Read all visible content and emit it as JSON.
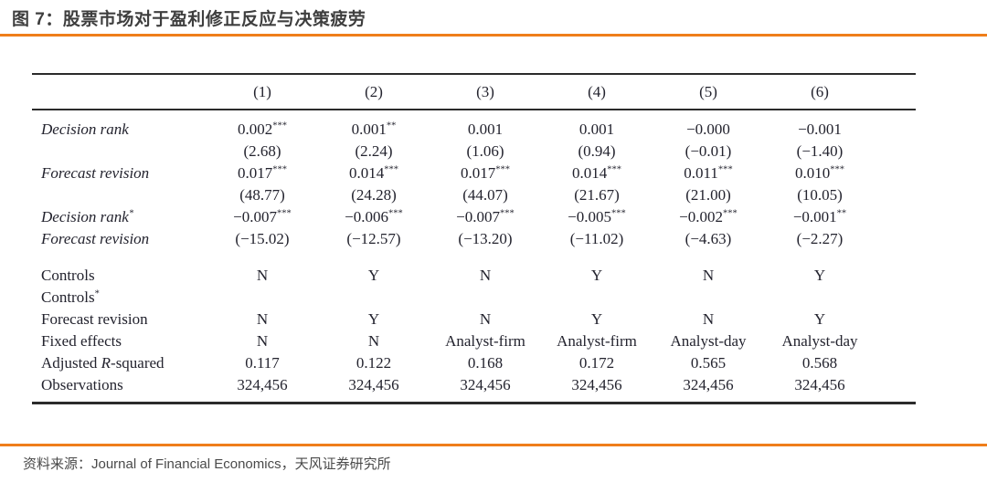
{
  "header": {
    "title": "图 7：股票市场对于盈利修正反应与决策疲劳"
  },
  "table": {
    "columns": [
      "(1)",
      "(2)",
      "(3)",
      "(4)",
      "(5)",
      "(6)"
    ],
    "sections": [
      {
        "rows": [
          {
            "label": "Decision rank",
            "label_style": "italic",
            "cells": [
              "0.002***",
              "0.001**",
              "0.001",
              "0.001",
              "−0.000",
              "−0.001"
            ]
          },
          {
            "label": "",
            "label_style": "italic",
            "cells": [
              "(2.68)",
              "(2.24)",
              "(1.06)",
              "(0.94)",
              "(−0.01)",
              "(−1.40)"
            ]
          },
          {
            "label": "Forecast revision",
            "label_style": "italic",
            "cells": [
              "0.017***",
              "0.014***",
              "0.017***",
              "0.014***",
              "0.011***",
              "0.010***"
            ]
          },
          {
            "label": "",
            "label_style": "italic",
            "cells": [
              "(48.77)",
              "(24.28)",
              "(44.07)",
              "(21.67)",
              "(21.00)",
              "(10.05)"
            ]
          },
          {
            "label": "Decision rank*",
            "label_style": "italic",
            "cells": [
              "−0.007***",
              "−0.006***",
              "−0.007***",
              "−0.005***",
              "−0.002***",
              "−0.001**"
            ]
          },
          {
            "label": "Forecast revision",
            "label_style": "italic",
            "cells": [
              "(−15.02)",
              "(−12.57)",
              "(−13.20)",
              "(−11.02)",
              "(−4.63)",
              "(−2.27)"
            ]
          }
        ]
      },
      {
        "rows": [
          {
            "label": "Controls",
            "label_style": "roman",
            "cells": [
              "N",
              "Y",
              "N",
              "Y",
              "N",
              "Y"
            ]
          },
          {
            "label": "Controls*",
            "label_style": "roman",
            "cells": [
              "",
              "",
              "",
              "",
              "",
              ""
            ]
          },
          {
            "label": "Forecast revision",
            "label_style": "roman",
            "cells": [
              "N",
              "Y",
              "N",
              "Y",
              "N",
              "Y"
            ]
          },
          {
            "label": "Fixed effects",
            "label_style": "roman",
            "cells": [
              "N",
              "N",
              "Analyst-firm",
              "Analyst-firm",
              "Analyst-day",
              "Analyst-day"
            ]
          },
          {
            "label": "Adjusted R-squared",
            "label_style": "roman",
            "italic_r": true,
            "cells": [
              "0.117",
              "0.122",
              "0.168",
              "0.172",
              "0.565",
              "0.568"
            ]
          },
          {
            "label": "Observations",
            "label_style": "roman",
            "cells": [
              "324,456",
              "324,456",
              "324,456",
              "324,456",
              "324,456",
              "324,456"
            ]
          }
        ]
      }
    ]
  },
  "footer": {
    "source": "资料来源：Journal of Financial Economics，天风证券研究所"
  },
  "colors": {
    "accent_orange": "#ef7e1a",
    "title_text": "#3e3e3e",
    "table_text": "#23232e",
    "source_text": "#4a4a4a",
    "rule_dark": "#2b2b2b"
  }
}
